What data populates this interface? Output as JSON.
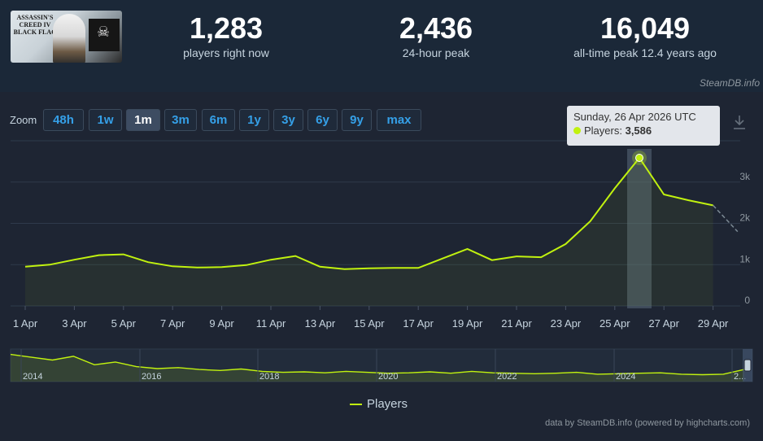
{
  "game": {
    "thumb_alt": "ASSASSIN'S CREED IV BLACK FLAG"
  },
  "stats": [
    {
      "value": "1,283",
      "label": "players right now"
    },
    {
      "value": "2,436",
      "label": "24-hour peak"
    },
    {
      "value": "16,049",
      "label": "all-time peak 12.4 years ago"
    }
  ],
  "credit_top": "SteamDB.info",
  "zoom": {
    "label": "Zoom",
    "buttons": [
      "48h",
      "1w",
      "1m",
      "3m",
      "6m",
      "1y",
      "3y",
      "6y",
      "9y",
      "max"
    ],
    "active": "1m"
  },
  "tooltip": {
    "date": "Sunday, 26 Apr 2026 UTC",
    "series": "Players:",
    "value": "3,586"
  },
  "legend": "Players",
  "credit_bottom": "data by SteamDB.info (powered by highcharts.com)",
  "colors": {
    "series": "#c1f20f",
    "background": "#1b2838",
    "panel": "#1e2533",
    "accent": "#35a0e8"
  },
  "chart_data": {
    "type": "line",
    "series": [
      {
        "name": "Players",
        "x": [
          "1 Apr",
          "2 Apr",
          "3 Apr",
          "4 Apr",
          "5 Apr",
          "6 Apr",
          "7 Apr",
          "8 Apr",
          "9 Apr",
          "10 Apr",
          "11 Apr",
          "12 Apr",
          "13 Apr",
          "14 Apr",
          "15 Apr",
          "16 Apr",
          "17 Apr",
          "18 Apr",
          "19 Apr",
          "20 Apr",
          "21 Apr",
          "22 Apr",
          "23 Apr",
          "24 Apr",
          "25 Apr",
          "26 Apr",
          "27 Apr",
          "28 Apr",
          "29 Apr",
          "30 Apr"
        ],
        "values": [
          950,
          1000,
          1120,
          1230,
          1250,
          1060,
          960,
          930,
          940,
          990,
          1120,
          1210,
          950,
          890,
          910,
          920,
          920,
          1150,
          1380,
          1110,
          1200,
          1180,
          1500,
          2050,
          2850,
          3586,
          2700,
          2560,
          2436,
          1800
        ]
      }
    ],
    "partial_last_point": true,
    "x_tick_labels": [
      "1 Apr",
      "3 Apr",
      "5 Apr",
      "7 Apr",
      "9 Apr",
      "11 Apr",
      "13 Apr",
      "15 Apr",
      "17 Apr",
      "19 Apr",
      "21 Apr",
      "23 Apr",
      "25 Apr",
      "27 Apr",
      "29 Apr"
    ],
    "y_tick_labels": [
      "0",
      "1k",
      "2k",
      "3k"
    ],
    "ylim": [
      0,
      4000
    ],
    "highlighted": {
      "x": "26 Apr",
      "value": 3586
    },
    "navigator": {
      "labels": [
        "2014",
        "2016",
        "2018",
        "2020",
        "2022",
        "2024",
        "2..."
      ],
      "values": [
        12000,
        2500,
        2200,
        2600,
        1700,
        2000,
        1500,
        1300,
        1400,
        1200,
        1100,
        1250,
        1000,
        900,
        950,
        850,
        1000,
        900,
        800,
        850,
        950,
        800,
        1000,
        850,
        800,
        750,
        800,
        900,
        700,
        750,
        800,
        850,
        700,
        650,
        700,
        1200
      ]
    },
    "grid": true,
    "legend_position": "bottom-center"
  }
}
